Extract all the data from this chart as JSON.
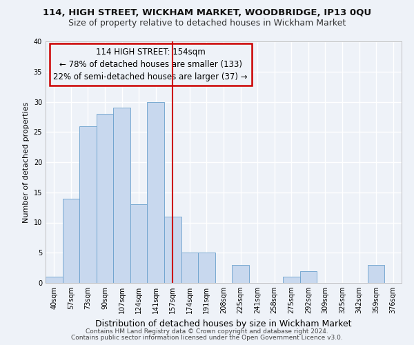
{
  "title1": "114, HIGH STREET, WICKHAM MARKET, WOODBRIDGE, IP13 0QU",
  "title2": "Size of property relative to detached houses in Wickham Market",
  "xlabel": "Distribution of detached houses by size in Wickham Market",
  "ylabel": "Number of detached properties",
  "footer1": "Contains HM Land Registry data © Crown copyright and database right 2024.",
  "footer2": "Contains public sector information licensed under the Open Government Licence v3.0.",
  "bin_labels": [
    "40sqm",
    "57sqm",
    "73sqm",
    "90sqm",
    "107sqm",
    "124sqm",
    "141sqm",
    "157sqm",
    "174sqm",
    "191sqm",
    "208sqm",
    "225sqm",
    "241sqm",
    "258sqm",
    "275sqm",
    "292sqm",
    "309sqm",
    "325sqm",
    "342sqm",
    "359sqm",
    "376sqm"
  ],
  "bar_values": [
    1,
    14,
    26,
    28,
    29,
    13,
    30,
    11,
    5,
    5,
    0,
    3,
    0,
    0,
    1,
    2,
    0,
    0,
    0,
    3,
    0
  ],
  "bar_color": "#c8d8ee",
  "bar_edge_color": "#6aa0cc",
  "reference_line_x_label": "157sqm",
  "reference_line_color": "#cc0000",
  "annotation_title": "114 HIGH STREET: 154sqm",
  "annotation_line1": "← 78% of detached houses are smaller (133)",
  "annotation_line2": "22% of semi-detached houses are larger (37) →",
  "annotation_box_edge_color": "#cc0000",
  "annotation_text_color": "#000000",
  "ylim": [
    0,
    40
  ],
  "yticks": [
    0,
    5,
    10,
    15,
    20,
    25,
    30,
    35,
    40
  ],
  "bg_color": "#eef2f8",
  "plot_bg_color": "#eef2f8",
  "grid_color": "#ffffff",
  "title1_fontsize": 9.5,
  "title2_fontsize": 9,
  "xlabel_fontsize": 9,
  "ylabel_fontsize": 8,
  "tick_fontsize": 7,
  "annotation_fontsize": 8.5,
  "footer_fontsize": 6.5
}
